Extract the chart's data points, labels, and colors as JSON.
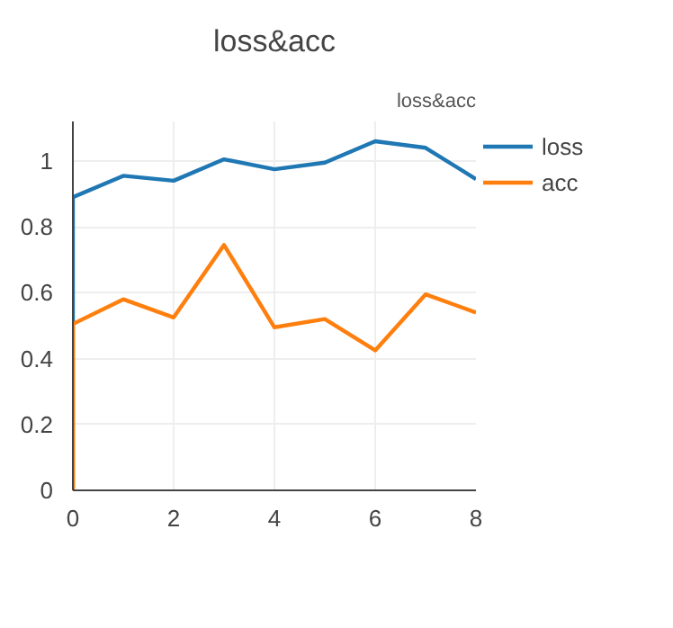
{
  "chart_data": {
    "type": "line",
    "title": "loss&acc",
    "annotations": [
      "loss&acc"
    ],
    "xlim": [
      0,
      8
    ],
    "ylim": [
      0,
      1.12
    ],
    "xticks": [
      0,
      2,
      4,
      6,
      8
    ],
    "yticks": [
      0,
      0.2,
      0.4,
      0.6,
      0.8,
      1
    ],
    "grid": true,
    "legend": "top right",
    "series": [
      {
        "name": "loss",
        "color": "#1f77b4",
        "x": [
          0,
          0,
          1,
          2,
          3,
          4,
          5,
          6,
          7,
          8
        ],
        "values": [
          0,
          0.89,
          0.955,
          0.94,
          1.005,
          0.975,
          0.995,
          1.06,
          1.04,
          0.945
        ]
      },
      {
        "name": "acc",
        "color": "#ff7f0e",
        "x": [
          0,
          0,
          1,
          2,
          3,
          4,
          5,
          6,
          7,
          8
        ],
        "values": [
          0,
          0.505,
          0.58,
          0.525,
          0.745,
          0.495,
          0.52,
          0.425,
          0.595,
          0.54
        ]
      }
    ]
  }
}
